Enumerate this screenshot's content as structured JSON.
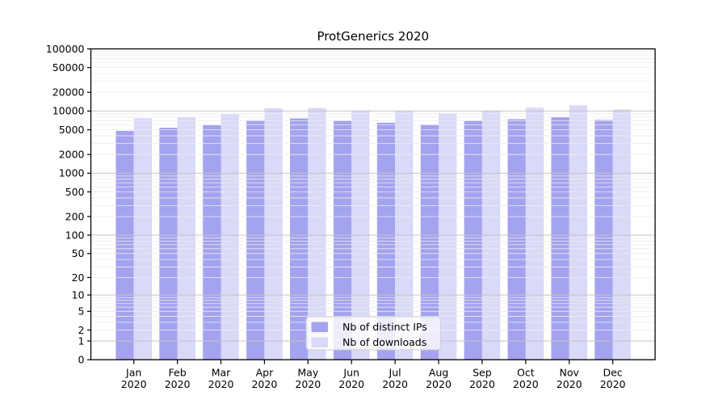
{
  "title": "ProtGenerics 2020",
  "legend": {
    "position": "inside-bottom-center",
    "items": [
      {
        "label": "Nb of distinct IPs",
        "color": "#a3a3ef"
      },
      {
        "label": "Nb of downloads",
        "color": "#d9d9f8"
      }
    ]
  },
  "chart_data": {
    "type": "bar",
    "title": "ProtGenerics 2020",
    "categories": [
      "Jan",
      "Feb",
      "Mar",
      "Apr",
      "May",
      "Jun",
      "Jul",
      "Aug",
      "Sep",
      "Oct",
      "Nov",
      "Dec"
    ],
    "category_year": "2020",
    "series": [
      {
        "name": "Nb of distinct IPs",
        "color": "#a3a3ef",
        "values": [
          4800,
          5400,
          5950,
          7100,
          7600,
          7050,
          6500,
          6050,
          6950,
          7400,
          8000,
          7200
        ]
      },
      {
        "name": "Nb of downloads",
        "color": "#d9d9f8",
        "values": [
          7700,
          8000,
          8900,
          11100,
          11200,
          10250,
          10050,
          9270,
          10150,
          11300,
          12400,
          10600
        ]
      }
    ],
    "xlabel": "",
    "ylabel": "",
    "yscale": "log10(value+1)",
    "ylim": [
      0,
      100000
    ],
    "ytick_values": [
      0,
      1,
      2,
      5,
      10,
      20,
      50,
      100,
      200,
      500,
      1000,
      2000,
      5000,
      10000,
      20000,
      50000,
      100000
    ],
    "grid": {
      "orientation": "horizontal",
      "major_at": "powers of 10",
      "minor_at": "2-9 within each decade",
      "major_color": "#c4c4c4",
      "minor_color": "#ececec",
      "drawn_above_bars": true
    },
    "legend_position": "inside bottom center",
    "bar_layout": "paired, no gap within pair"
  },
  "colors": {
    "background": "#ffffff",
    "spine": "#000000",
    "distinct_ips_bar": "#a3a3ef",
    "downloads_bar": "#d9d9f8",
    "legend_border": "#cccccc",
    "legend_background": "rgba(255,255,255,0.8)"
  }
}
